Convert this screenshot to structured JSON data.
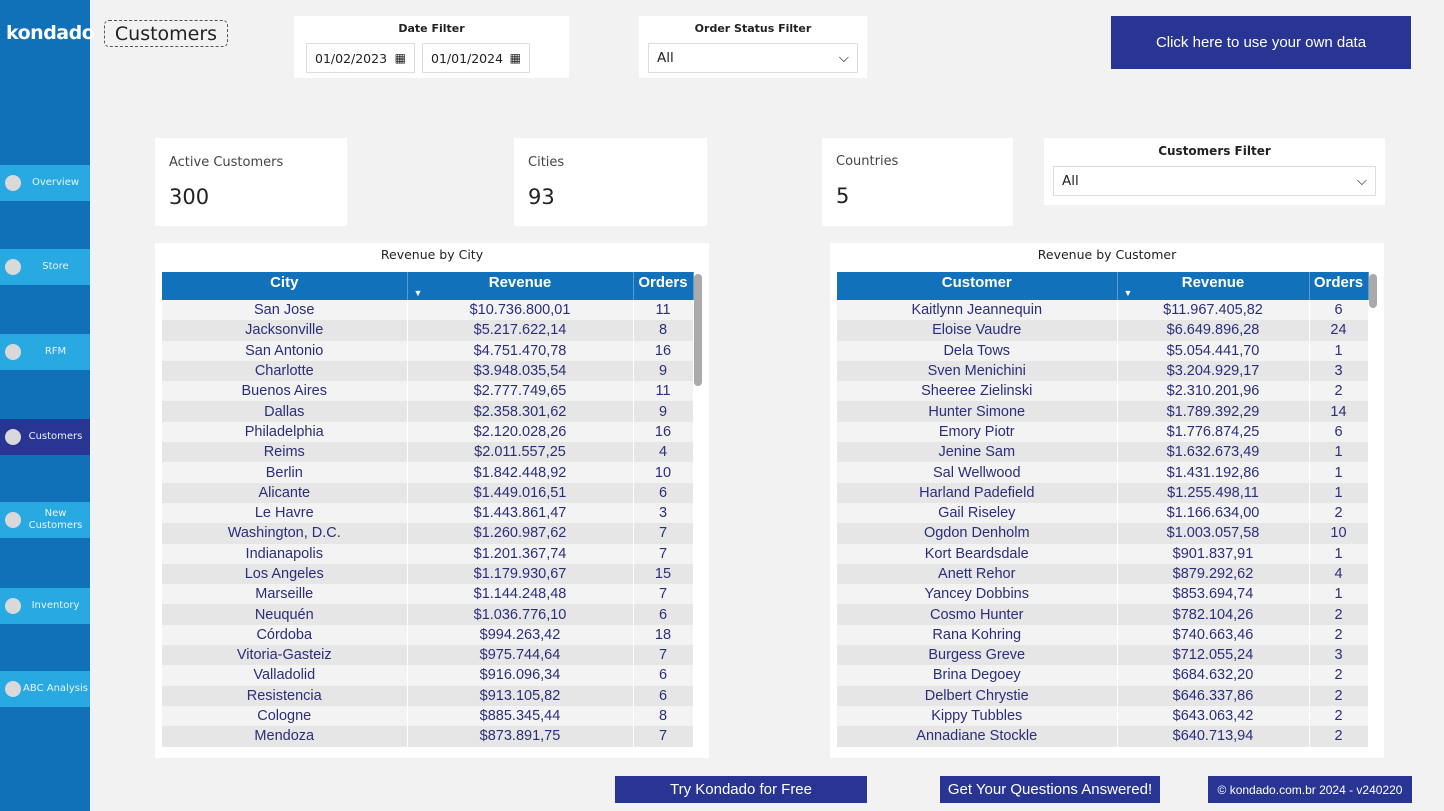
{
  "sidebar": {
    "logo": "kondado",
    "items": [
      {
        "label": "Overview",
        "active": false
      },
      {
        "label": "Store",
        "active": false
      },
      {
        "label": "RFM",
        "active": false
      },
      {
        "label": "Customers",
        "active": true
      },
      {
        "label": "New Customers",
        "active": false
      },
      {
        "label": "Inventory",
        "active": false
      },
      {
        "label": "ABC Analysis",
        "active": false
      }
    ]
  },
  "page_title": "Customers",
  "date_filter": {
    "label": "Date Filter",
    "start": "01/02/2023",
    "end": "01/01/2024"
  },
  "order_status_filter": {
    "label": "Order Status Filter",
    "value": "All"
  },
  "own_data_button": "Click here to use your own data",
  "kpis": {
    "active_customers": {
      "label": "Active Customers",
      "value": "300"
    },
    "cities": {
      "label": "Cities",
      "value": "93"
    },
    "countries": {
      "label": "Countries",
      "value": "5"
    }
  },
  "customers_filter": {
    "label": "Customers Filter",
    "value": "All"
  },
  "city_table": {
    "title": "Revenue by City",
    "columns": [
      "City",
      "Revenue",
      "Orders"
    ],
    "rows": [
      [
        "San Jose",
        "$10.736.800,01",
        "11"
      ],
      [
        "Jacksonville",
        "$5.217.622,14",
        "8"
      ],
      [
        "San Antonio",
        "$4.751.470,78",
        "16"
      ],
      [
        "Charlotte",
        "$3.948.035,54",
        "9"
      ],
      [
        "Buenos Aires",
        "$2.777.749,65",
        "11"
      ],
      [
        "Dallas",
        "$2.358.301,62",
        "9"
      ],
      [
        "Philadelphia",
        "$2.120.028,26",
        "16"
      ],
      [
        "Reims",
        "$2.011.557,25",
        "4"
      ],
      [
        "Berlin",
        "$1.842.448,92",
        "10"
      ],
      [
        "Alicante",
        "$1.449.016,51",
        "6"
      ],
      [
        "Le Havre",
        "$1.443.861,47",
        "3"
      ],
      [
        "Washington, D.C.",
        "$1.260.987,62",
        "7"
      ],
      [
        "Indianapolis",
        "$1.201.367,74",
        "7"
      ],
      [
        "Los Angeles",
        "$1.179.930,67",
        "15"
      ],
      [
        "Marseille",
        "$1.144.248,48",
        "7"
      ],
      [
        "Neuquén",
        "$1.036.776,10",
        "6"
      ],
      [
        "Córdoba",
        "$994.263,42",
        "18"
      ],
      [
        "Vitoria-Gasteiz",
        "$975.744,64",
        "7"
      ],
      [
        "Valladolid",
        "$916.096,34",
        "6"
      ],
      [
        "Resistencia",
        "$913.105,82",
        "6"
      ],
      [
        "Cologne",
        "$885.345,44",
        "8"
      ],
      [
        "Mendoza",
        "$873.891,75",
        "7"
      ]
    ]
  },
  "customer_table": {
    "title": "Revenue by Customer",
    "columns": [
      "Customer",
      "Revenue",
      "Orders"
    ],
    "rows": [
      [
        "Kaitlynn Jeannequin",
        "$11.967.405,82",
        "6"
      ],
      [
        "Eloise Vaudre",
        "$6.649.896,28",
        "24"
      ],
      [
        "Dela Tows",
        "$5.054.441,70",
        "1"
      ],
      [
        "Sven Menichini",
        "$3.204.929,17",
        "3"
      ],
      [
        "Sheeree Zielinski",
        "$2.310.201,96",
        "2"
      ],
      [
        "Hunter Simone",
        "$1.789.392,29",
        "14"
      ],
      [
        "Emory Piotr",
        "$1.776.874,25",
        "6"
      ],
      [
        "Jenine Sam",
        "$1.632.673,49",
        "1"
      ],
      [
        "Sal Wellwood",
        "$1.431.192,86",
        "1"
      ],
      [
        "Harland Padefield",
        "$1.255.498,11",
        "1"
      ],
      [
        "Gail Riseley",
        "$1.166.634,00",
        "2"
      ],
      [
        "Ogdon Denholm",
        "$1.003.057,58",
        "10"
      ],
      [
        "Kort Beardsdale",
        "$901.837,91",
        "1"
      ],
      [
        "Anett Rehor",
        "$879.292,62",
        "4"
      ],
      [
        "Yancey Dobbins",
        "$853.694,74",
        "1"
      ],
      [
        "Cosmo Hunter",
        "$782.104,26",
        "2"
      ],
      [
        "Rana Kohring",
        "$740.663,46",
        "2"
      ],
      [
        "Burgess Greve",
        "$712.055,24",
        "3"
      ],
      [
        "Brina Degoey",
        "$684.632,20",
        "2"
      ],
      [
        "Delbert Chrystie",
        "$646.337,86",
        "2"
      ],
      [
        "Kippy Tubbles",
        "$643.063,42",
        "2"
      ],
      [
        "Annadiane Stockle",
        "$640.713,94",
        "2"
      ]
    ]
  },
  "footer": {
    "try_button": "Try Kondado for Free",
    "questions_button": "Get Your Questions Answered!",
    "copyright": "© kondado.com.br 2024 - v240220"
  }
}
